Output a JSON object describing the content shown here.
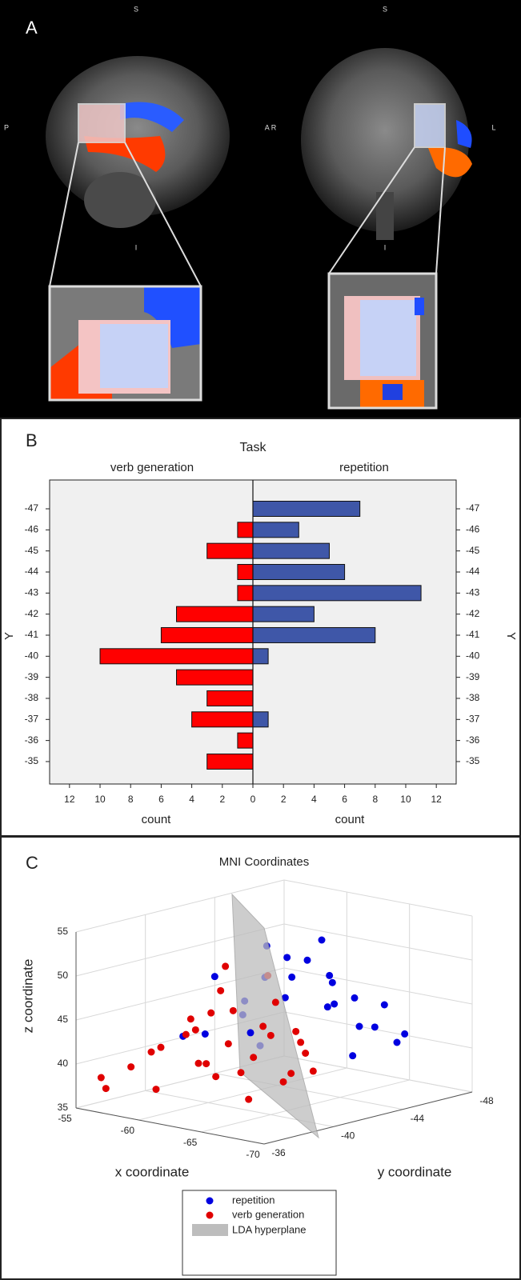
{
  "panel_a": {
    "label": "A",
    "orientation_labels": [
      "S",
      "S",
      "P",
      "A R",
      "L",
      "I",
      "I"
    ]
  },
  "chart_data": [
    {
      "type": "mirror-bar",
      "panel_label": "B",
      "title": "Task",
      "xlabel": "count",
      "ylabel": "Y",
      "categories": [
        -47,
        -46,
        -45,
        -44,
        -43,
        -42,
        -41,
        -40,
        -39,
        -38,
        -37,
        -36,
        -35
      ],
      "series": [
        {
          "name": "verb generation",
          "color": "#ff0000",
          "values": [
            0,
            1,
            3,
            1,
            1,
            5,
            6,
            10,
            5,
            3,
            4,
            1,
            3
          ]
        },
        {
          "name": "repetition",
          "color": "#3f57a8",
          "values": [
            7,
            3,
            5,
            6,
            11,
            4,
            8,
            1,
            0,
            0,
            1,
            0,
            0
          ]
        }
      ],
      "xlim": [
        0,
        13.3
      ],
      "xticks": [
        0,
        2,
        4,
        6,
        8,
        10,
        12
      ]
    },
    {
      "type": "scatter3d",
      "panel_label": "C",
      "title": "MNI Coordinates",
      "xlabel": "x coordinate",
      "ylabel": "y coordinate",
      "zlabel": "z coordinate",
      "xlim": [
        -55,
        -70
      ],
      "xticks": [
        -55,
        -60,
        -65,
        -70
      ],
      "ylim": [
        -36,
        -48
      ],
      "yticks": [
        -36,
        -40,
        -44,
        -48
      ],
      "zlim": [
        35,
        55
      ],
      "zticks": [
        35,
        40,
        45,
        50,
        55
      ],
      "series": [
        {
          "name": "repetition",
          "color": "#0000e0",
          "x": [
            -58,
            -60,
            -62,
            -59,
            -61,
            -63,
            -64,
            -58,
            -60,
            -62,
            -56,
            -57,
            -65,
            -63,
            -66,
            -61,
            -64,
            -59,
            -55,
            -57,
            -60,
            -62,
            -66,
            -58,
            -55
          ],
          "y": [
            -40,
            -42,
            -43,
            -44,
            -45,
            -45,
            -44,
            -46,
            -47,
            -47,
            -45,
            -47,
            -46,
            -48,
            -47,
            -48,
            -48,
            -48,
            -44,
            -42,
            -43,
            -41,
            -44,
            -48,
            -47
          ],
          "z": [
            42,
            44,
            46,
            47,
            49,
            47,
            45,
            48,
            46,
            44,
            43,
            45,
            42,
            43,
            41,
            40,
            39,
            42,
            46,
            41,
            40,
            43,
            40,
            49,
            48
          ]
        },
        {
          "name": "verb generation",
          "color": "#e00000",
          "x": [
            -58,
            -57,
            -59,
            -60,
            -61,
            -62,
            -60,
            -63,
            -62,
            -64,
            -61,
            -65,
            -63,
            -66,
            -64,
            -62,
            -66,
            -65,
            -67,
            -63,
            -59,
            -60,
            -64,
            -66,
            -68,
            -61,
            -56,
            -65,
            -62,
            -67
          ],
          "y": [
            -37,
            -36,
            -38,
            -37,
            -38,
            -38,
            -39,
            -39,
            -40,
            -39,
            -40,
            -39,
            -41,
            -40,
            -41,
            -42,
            -41,
            -42,
            -40,
            -38,
            -40,
            -41,
            -37,
            -38,
            -39,
            -36,
            -37,
            -40,
            -39,
            -41
          ],
          "z": [
            40,
            39,
            42,
            38,
            44,
            41,
            45,
            43,
            46,
            40,
            48,
            42,
            44,
            39,
            47,
            49,
            43,
            41,
            45,
            47,
            43,
            50,
            42,
            38,
            41,
            43,
            37,
            44,
            39,
            40
          ]
        }
      ],
      "hyperplane": {
        "name": "LDA hyperplane",
        "color": "#bdbdbd"
      }
    }
  ]
}
